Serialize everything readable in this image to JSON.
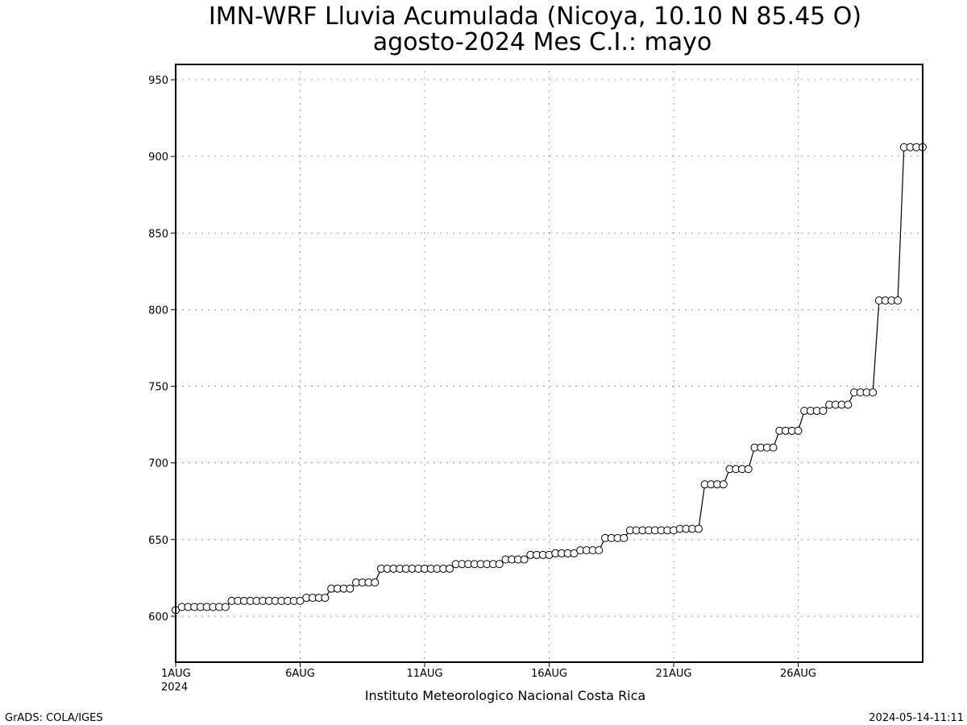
{
  "chart_data": {
    "type": "line",
    "title": "IMN-WRF  Lluvia Acumulada  (Nicoya, 10.10  N 85.45  O)",
    "subtitle": "agosto-2024 Mes C.I.: mayo",
    "xlabel": "Instituto Meteorologico Nacional Costa Rica",
    "ylabel": "",
    "xlim": [
      1,
      31
    ],
    "ylim": [
      570,
      960
    ],
    "yticks": [
      600,
      650,
      700,
      750,
      800,
      850,
      900,
      950
    ],
    "xticks": [
      {
        "day": 1,
        "label": "1AUG",
        "sublabel": "2024"
      },
      {
        "day": 6,
        "label": "6AUG"
      },
      {
        "day": 11,
        "label": "11AUG"
      },
      {
        "day": 16,
        "label": "16AUG"
      },
      {
        "day": 21,
        "label": "21AUG"
      },
      {
        "day": 26,
        "label": "26AUG"
      }
    ],
    "grid": true,
    "series": [
      {
        "marker": "open-circle",
        "x": [
          1.0,
          1.25,
          1.5,
          1.75,
          2.0,
          2.25,
          2.5,
          2.75,
          3.0,
          3.25,
          3.5,
          3.75,
          4.0,
          4.25,
          4.5,
          4.75,
          5.0,
          5.25,
          5.5,
          5.75,
          6.0,
          6.25,
          6.5,
          6.75,
          7.0,
          7.25,
          7.5,
          7.75,
          8.0,
          8.25,
          8.5,
          8.75,
          9.0,
          9.25,
          9.5,
          9.75,
          10.0,
          10.25,
          10.5,
          10.75,
          11.0,
          11.25,
          11.5,
          11.75,
          12.0,
          12.25,
          12.5,
          12.75,
          13.0,
          13.25,
          13.5,
          13.75,
          14.0,
          14.25,
          14.5,
          14.75,
          15.0,
          15.25,
          15.5,
          15.75,
          16.0,
          16.25,
          16.5,
          16.75,
          17.0,
          17.25,
          17.5,
          17.75,
          18.0,
          18.25,
          18.5,
          18.75,
          19.0,
          19.25,
          19.5,
          19.75,
          20.0,
          20.25,
          20.5,
          20.75,
          21.0,
          21.25,
          21.5,
          21.75,
          22.0,
          22.25,
          22.5,
          22.75,
          23.0,
          23.25,
          23.5,
          23.75,
          24.0,
          24.25,
          24.5,
          24.75,
          25.0,
          25.25,
          25.5,
          25.75,
          26.0,
          26.25,
          26.5,
          26.75,
          27.0,
          27.25,
          27.5,
          27.75,
          28.0,
          28.25,
          28.5,
          28.75,
          29.0,
          29.25,
          29.5,
          29.75,
          30.0,
          30.25,
          30.5,
          30.75,
          31.0
        ],
        "y": [
          604,
          606,
          606,
          606,
          606,
          606,
          606,
          606,
          606,
          610,
          610,
          610,
          610,
          610,
          610,
          610,
          610,
          610,
          610,
          610,
          610,
          612,
          612,
          612,
          612,
          618,
          618,
          618,
          618,
          622,
          622,
          622,
          622,
          631,
          631,
          631,
          631,
          631,
          631,
          631,
          631,
          631,
          631,
          631,
          631,
          634,
          634,
          634,
          634,
          634,
          634,
          634,
          634,
          637,
          637,
          637,
          637,
          640,
          640,
          640,
          640,
          641,
          641,
          641,
          641,
          643,
          643,
          643,
          643,
          651,
          651,
          651,
          651,
          656,
          656,
          656,
          656,
          656,
          656,
          656,
          656,
          657,
          657,
          657,
          657,
          686,
          686,
          686,
          686,
          696,
          696,
          696,
          696,
          710,
          710,
          710,
          710,
          721,
          721,
          721,
          721,
          734,
          734,
          734,
          734,
          738,
          738,
          738,
          738,
          746,
          746,
          746,
          746,
          806,
          806,
          806,
          806,
          906,
          906,
          906,
          906
        ]
      }
    ]
  },
  "footer": {
    "left": "GrADS: COLA/IGES",
    "right": "2024-05-14-11:11"
  }
}
